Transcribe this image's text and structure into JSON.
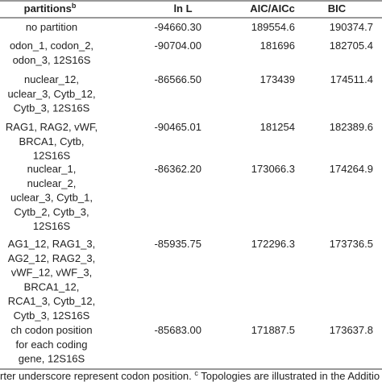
{
  "table": {
    "header": [
      "partitions",
      "ln L",
      "AIC/AICc",
      "BIC"
    ],
    "header_sup": "b",
    "rows": [
      {
        "partition": [
          "no partition"
        ],
        "lnL": "-94660.30",
        "aic": "189554.6",
        "bic": "190374.7"
      },
      {
        "partition": [
          "odon_1, codon_2,",
          "odon_3, 12S16S"
        ],
        "lnL": "-90704.00",
        "aic": "181696",
        "bic": "182705.4"
      },
      {
        "partition": [
          "nuclear_12,",
          "uclear_3, Cytb_12,",
          "Cytb_3, 12S16S"
        ],
        "lnL": "-86566.50",
        "aic": "173439",
        "bic": "174511.4"
      },
      {
        "partition": [
          "RAG1, RAG2, vWF,",
          "BRCA1, Cytb,",
          "12S16S"
        ],
        "lnL": "-90465.01",
        "aic": "181254",
        "bic": "182389.6"
      },
      {
        "partition": [
          "nuclear_1,",
          "nuclear_2,",
          "uclear_3, Cytb_1,",
          "Cytb_2, Cytb_3,",
          "12S16S"
        ],
        "lnL": "-86362.20",
        "aic": "173066.3",
        "bic": "174264.9"
      },
      {
        "partition": [
          "AG1_12, RAG1_3,",
          "AG2_12, RAG2_3,",
          "vWF_12, vWF_3,",
          "BRCA1_12,",
          "RCA1_3, Cytb_12,",
          "Cytb_3, 12S16S"
        ],
        "lnL": "-85935.75",
        "aic": "172296.3",
        "bic": "173736.5"
      },
      {
        "partition": [
          "ch codon position",
          "for each coding",
          "gene, 12S16S"
        ],
        "lnL": "-85683.00",
        "aic": "171887.5",
        "bic": "173637.8"
      }
    ]
  },
  "footnote": {
    "text1": "rter underscore represent codon position. ",
    "sup": "c",
    "text2": " Topologies are illustrated in the Additio"
  }
}
